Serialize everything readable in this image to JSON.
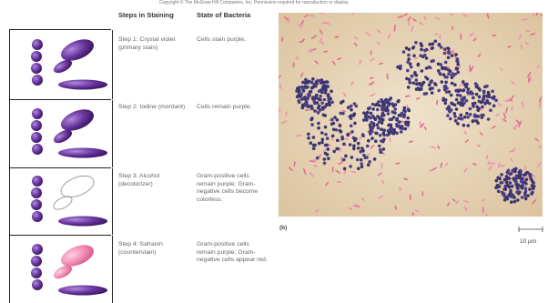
{
  "copyright": "Copyright © The McGraw-Hill Companies, Inc. Permission required for reproduction or display.",
  "headers": {
    "steps": "Steps in Staining",
    "state": "State of Bacteria"
  },
  "rows": [
    {
      "step": "Step 1: Crystal violet (primary stain)",
      "state": "Cells stain purple."
    },
    {
      "step": "Step 2: Iodine (mordant)",
      "state": "Cells remain purple."
    },
    {
      "step": "Step 3: Alcohol (decolorizer)",
      "state": "Gram-positive cells remain purple; Gram-negative cells become colorless."
    },
    {
      "step": "Step 4: Safranin (counterstain)",
      "state": "Gram-positive cells remain purple; Gram-negative cells appear red."
    }
  ],
  "micrograph": {
    "panel_label": "(b)",
    "scale_bar": "10 µm"
  },
  "colors": {
    "gram_positive": "#5a2a8a",
    "gram_negative_red": "#ee7fa8",
    "background_stain": "#e9d8bc"
  }
}
